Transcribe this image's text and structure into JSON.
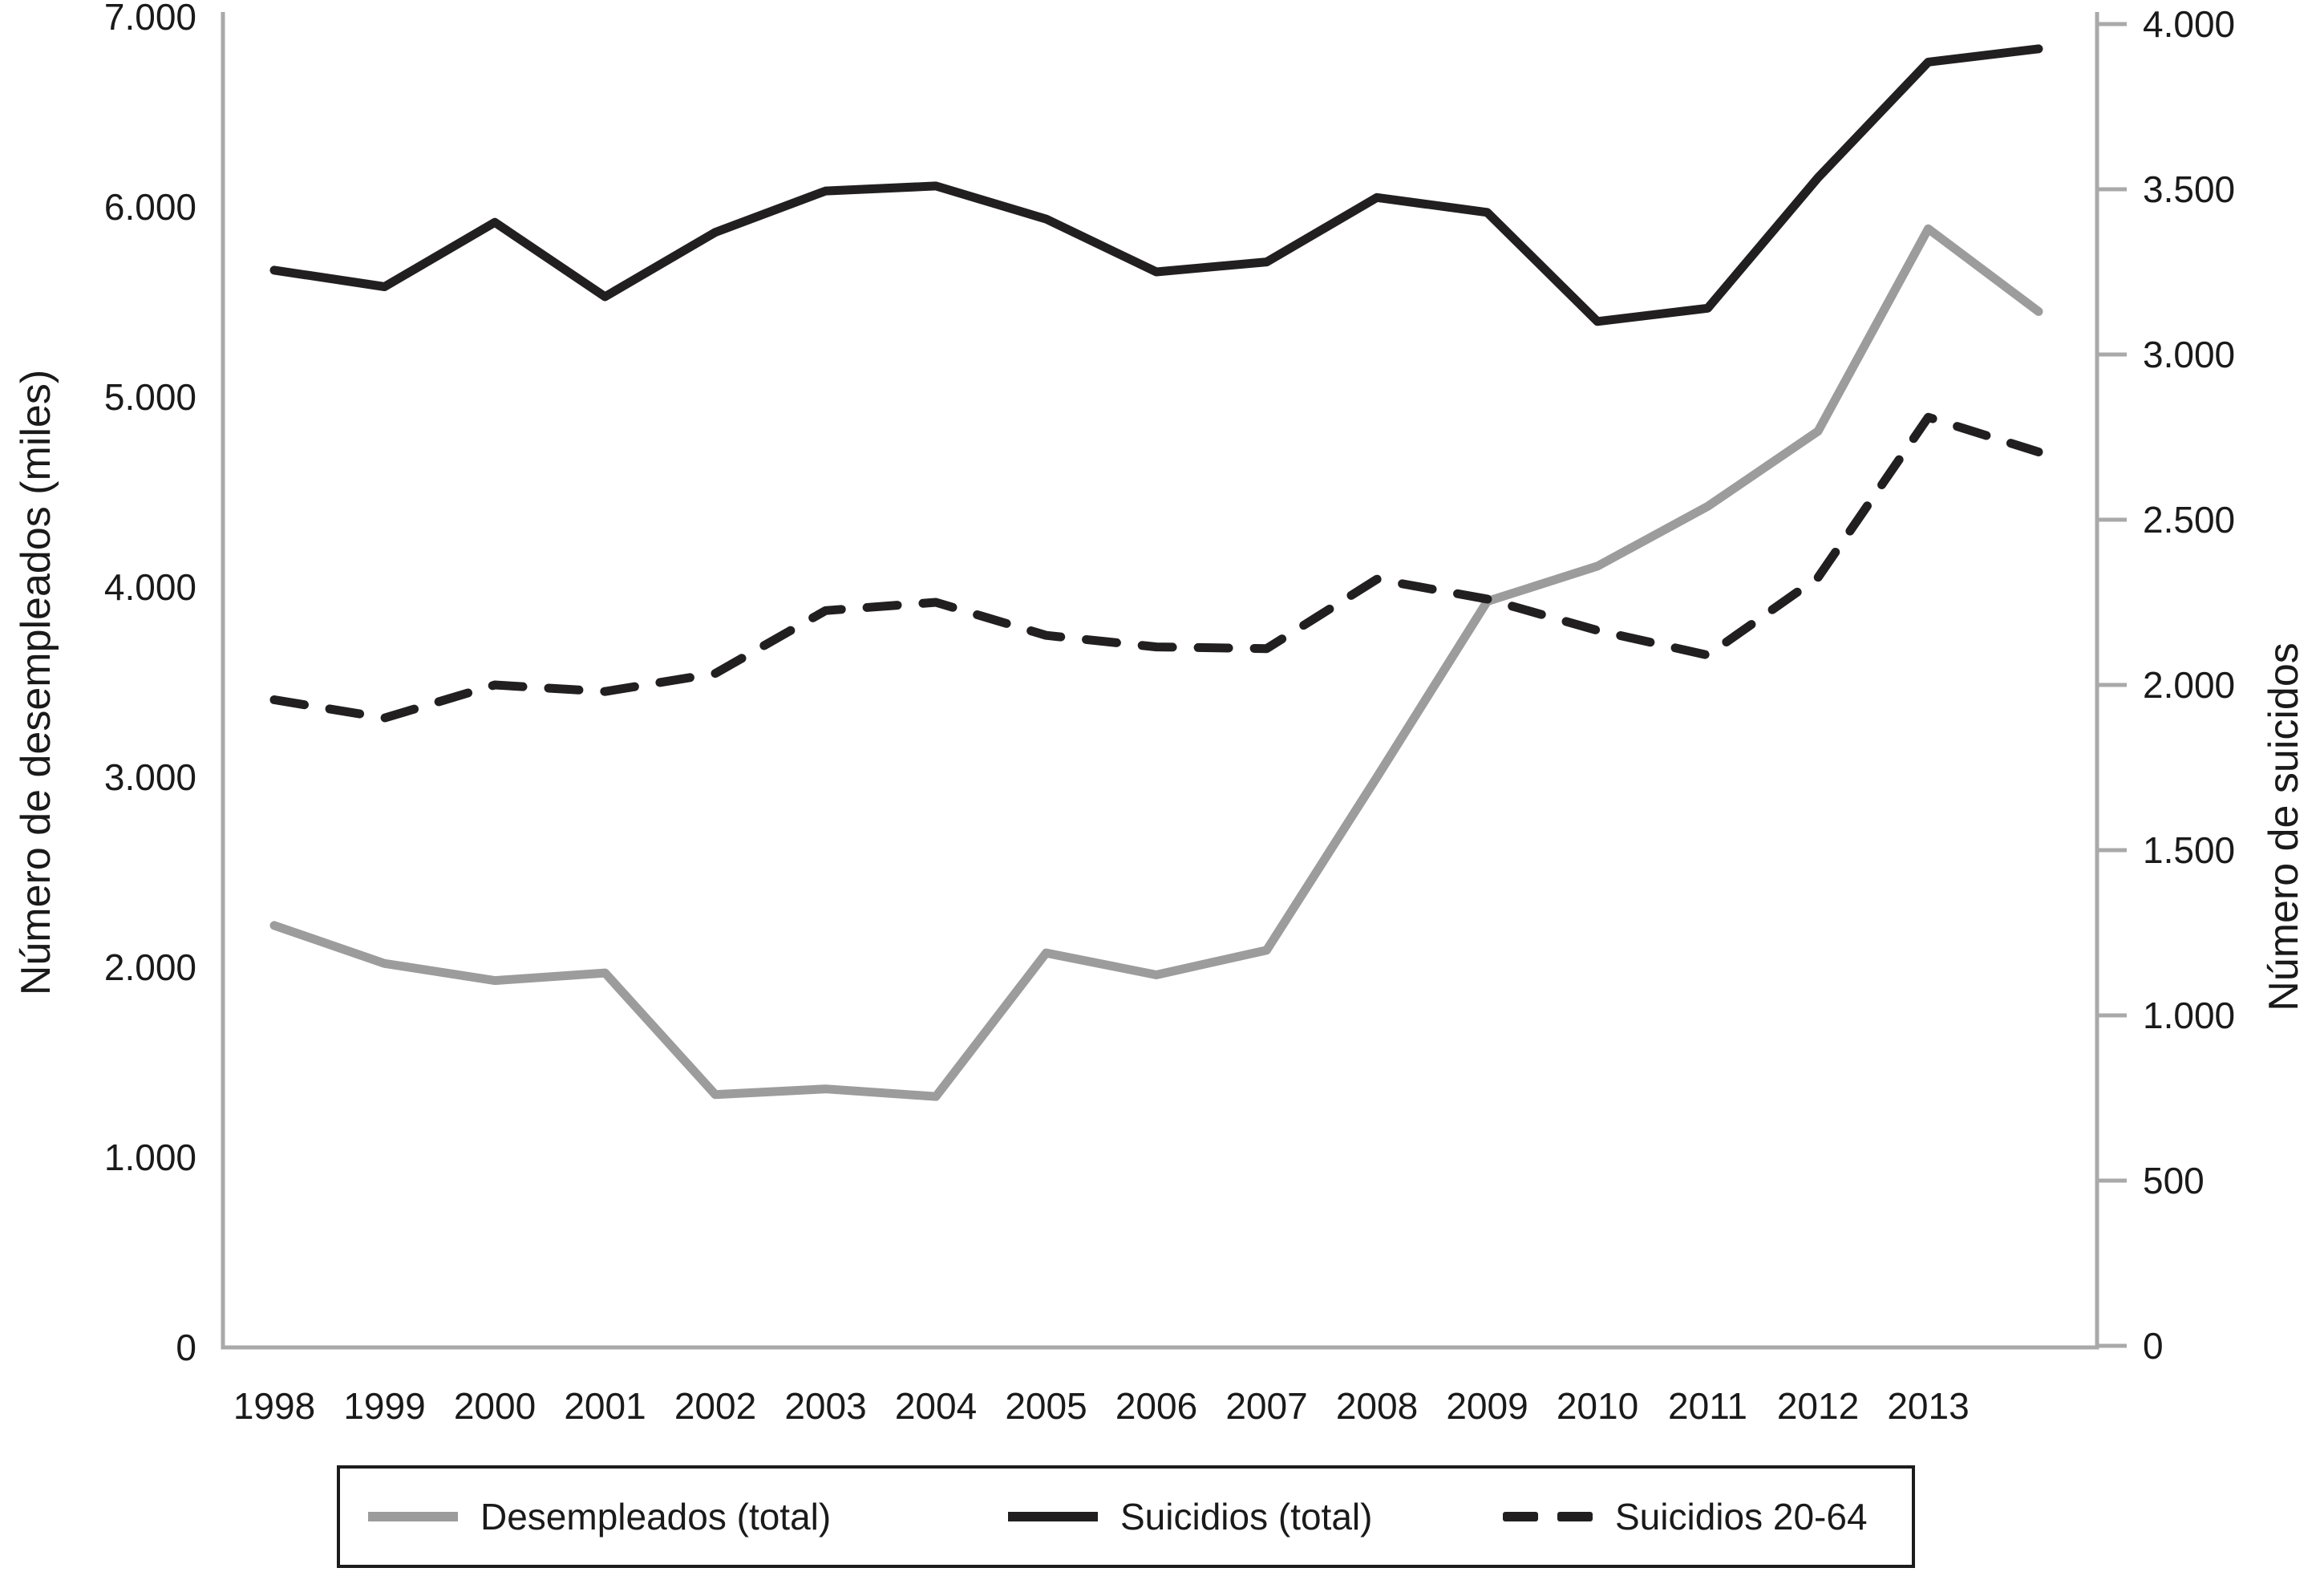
{
  "chart_data": {
    "type": "line",
    "x": [
      1998,
      1999,
      2000,
      2001,
      2002,
      2003,
      2004,
      2005,
      2006,
      2007,
      2008,
      2009,
      2010,
      2011,
      2012,
      2013,
      2014
    ],
    "x_tick_labels": [
      "1998",
      "1999",
      "2000",
      "2001",
      "2002",
      "2003",
      "2004",
      "2005",
      "2006",
      "2007",
      "2008",
      "2009",
      "2010",
      "2011",
      "2012",
      "2013"
    ],
    "left_axis": {
      "label": "Número de desempleados (miles)",
      "range": [
        0,
        7000
      ],
      "tick_values": [
        7000,
        6000,
        5000,
        4000,
        3000,
        2000,
        1000,
        0
      ],
      "tick_labels": [
        "7.000",
        "6.000",
        "5.000",
        "4.000",
        "3.000",
        "2.000",
        "1.000",
        "0"
      ]
    },
    "right_axis": {
      "label": "Número de suicidos",
      "range": [
        0,
        4000
      ],
      "tick_values": [
        4000,
        3500,
        3000,
        2500,
        2000,
        1500,
        1000,
        500,
        0
      ],
      "tick_labels": [
        "4.000",
        "3.500",
        "3.000",
        "2.500",
        "2.000",
        "1.500",
        "1.000",
        "500",
        "0"
      ]
    },
    "series": [
      {
        "name": "Desempleados (total)",
        "axis": "left",
        "style": "solid",
        "color": "#9c9c9c",
        "values": [
          2220,
          2020,
          1930,
          1970,
          1330,
          1360,
          1320,
          2075,
          1960,
          2090,
          3000,
          3925,
          4110,
          4425,
          4820,
          5885,
          5450
        ]
      },
      {
        "name": "Suicidios (total)",
        "axis": "right",
        "style": "solid",
        "color": "#221f20",
        "values": [
          3255,
          3205,
          3400,
          3175,
          3370,
          3495,
          3510,
          3410,
          3250,
          3280,
          3475,
          3430,
          3100,
          3140,
          3535,
          3885,
          3925
        ]
      },
      {
        "name": "Suicidios 20-64",
        "axis": "right",
        "style": "dashed",
        "color": "#221f20",
        "values": [
          1955,
          1900,
          2000,
          1980,
          2035,
          2225,
          2250,
          2150,
          2115,
          2110,
          2320,
          2260,
          2165,
          2090,
          2325,
          2810,
          2705
        ]
      }
    ],
    "legend_position": "bottom",
    "grid": false
  },
  "colors": {
    "axis": "#a9a9a9",
    "text": "#1a1a1a",
    "background": "#ffffff"
  }
}
